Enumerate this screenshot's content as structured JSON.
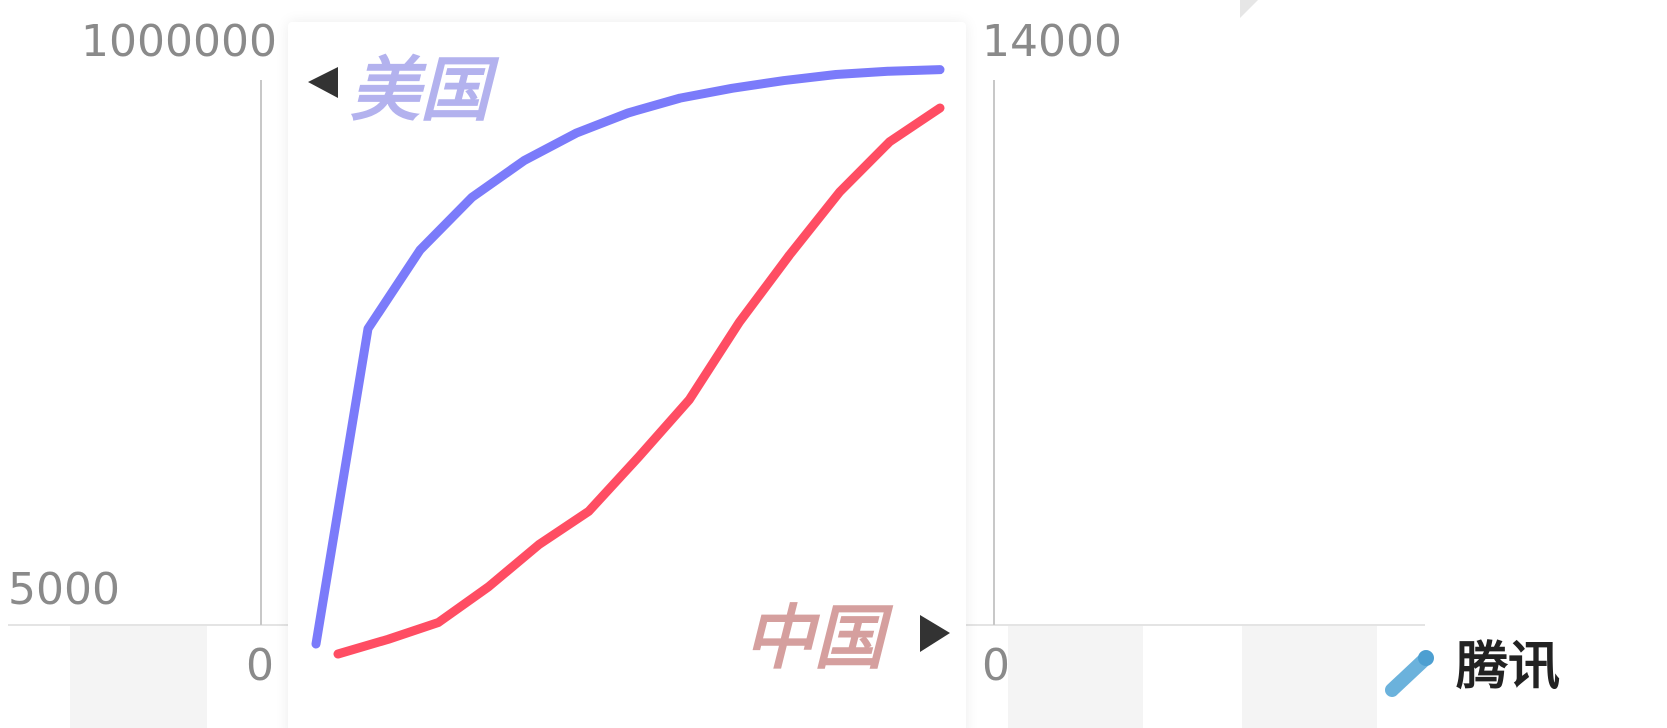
{
  "axes": {
    "left": {
      "top": "1000000",
      "bottom": "5000",
      "zero": "0"
    },
    "right": {
      "top": "14000",
      "zero": "0"
    }
  },
  "brand": {
    "name": "腾讯",
    "icon": "tencent-pen-icon"
  },
  "colors": {
    "us": "#7b7bfa",
    "us_label": "#b3b2ee",
    "cn": "#ff4d63",
    "cn_label": "#d59f9e",
    "axis_text": "#8a8a8a",
    "arrow": "#333333"
  },
  "chart_data": {
    "type": "line",
    "title": "",
    "xlabel": "",
    "grid": false,
    "legend": "inline labels with arrows pointing to each axis",
    "x": [
      0,
      1,
      2,
      3,
      4,
      5,
      6,
      7,
      8,
      9,
      10,
      11,
      12
    ],
    "series": [
      {
        "name": "美国",
        "axis": "left",
        "values": [
          5000,
          90000,
          185000,
          300000,
          420000,
          540000,
          650000,
          745000,
          815000,
          875000,
          925000,
          953000,
          967000
        ]
      },
      {
        "name": "中国",
        "axis": "right",
        "values": [
          0,
          350,
          750,
          1600,
          2600,
          3400,
          4700,
          6050,
          7900,
          9500,
          11000,
          12200,
          13000
        ]
      }
    ],
    "y_left": {
      "scale": "log",
      "ylim": [
        5000,
        1000000
      ],
      "ticks": [
        "5000",
        "1000000"
      ]
    },
    "y_right": {
      "scale": "linear",
      "ylim": [
        0,
        14000
      ],
      "ticks": [
        "0",
        "14000"
      ]
    }
  }
}
